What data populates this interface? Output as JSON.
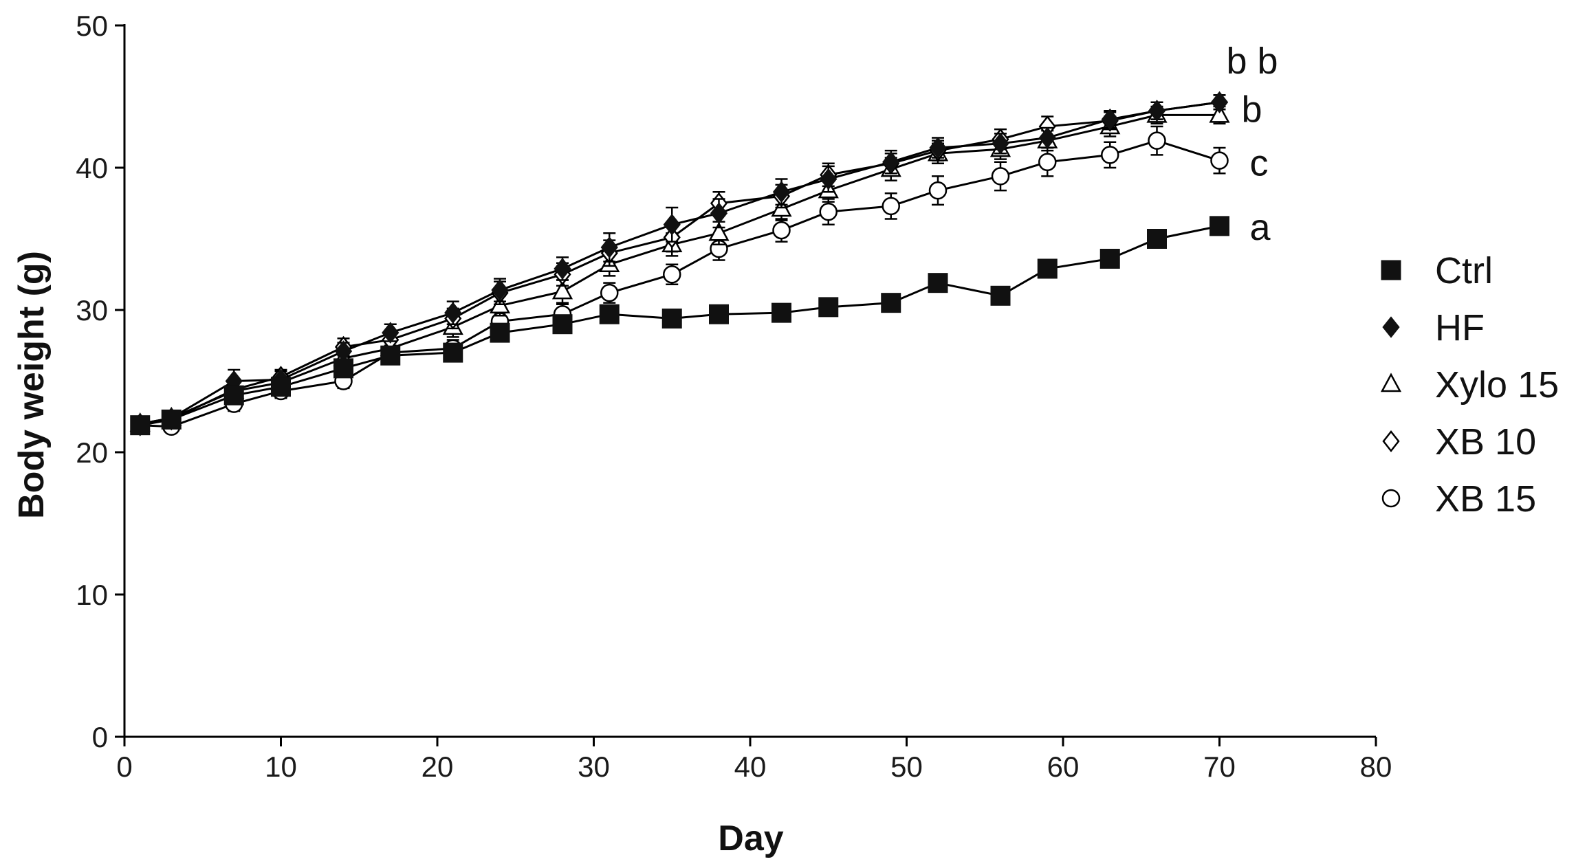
{
  "chart_data": {
    "type": "line",
    "title": "",
    "xlabel": "Day",
    "ylabel": "Body weight (g)",
    "xlim": [
      0,
      80
    ],
    "ylim": [
      0,
      50
    ],
    "xticks": [
      0,
      10,
      20,
      30,
      40,
      50,
      60,
      70,
      80
    ],
    "yticks": [
      0,
      10,
      20,
      30,
      40,
      50
    ],
    "grid": false,
    "legend_position": "right",
    "series": [
      {
        "name": "Ctrl",
        "marker": "square-filled",
        "x": [
          1,
          3,
          7,
          10,
          14,
          17,
          21,
          24,
          28,
          31,
          35,
          38,
          42,
          45,
          49,
          52,
          56,
          59,
          63,
          66,
          70
        ],
        "values": [
          21.9,
          22.3,
          24.0,
          24.6,
          25.9,
          26.8,
          27.0,
          28.4,
          29.0,
          29.7,
          29.4,
          29.7,
          29.8,
          30.2,
          30.5,
          31.9,
          31.0,
          32.9,
          33.6,
          35.0,
          35.9
        ],
        "err": [
          0.3,
          0.3,
          0.5,
          0.4,
          0.5,
          0.4,
          0.4,
          0.5,
          0.5,
          0.6,
          0.3,
          0.4,
          0.4,
          0.4,
          0.4,
          0.5,
          0.5,
          0.6,
          0.5,
          0.6,
          0.5
        ]
      },
      {
        "name": "HF",
        "marker": "diamond-filled",
        "x": [
          1,
          3,
          7,
          10,
          14,
          17,
          21,
          24,
          28,
          31,
          35,
          38,
          42,
          45,
          49,
          52,
          56,
          59,
          63,
          66,
          70
        ],
        "values": [
          22.0,
          22.4,
          25.0,
          25.1,
          27.1,
          28.4,
          29.8,
          31.4,
          32.9,
          34.4,
          36.0,
          36.8,
          38.3,
          39.2,
          40.4,
          41.4,
          41.7,
          42.1,
          43.4,
          44.0,
          44.6
        ],
        "err": [
          0.3,
          0.4,
          0.8,
          0.6,
          0.6,
          0.6,
          0.8,
          0.8,
          0.8,
          1.0,
          1.2,
          1.0,
          0.9,
          0.9,
          0.8,
          0.7,
          0.7,
          0.7,
          0.6,
          0.6,
          0.5
        ]
      },
      {
        "name": "Xylo 15",
        "marker": "triangle-open",
        "x": [
          1,
          3,
          7,
          10,
          14,
          17,
          21,
          24,
          28,
          31,
          35,
          38,
          42,
          45,
          49,
          52,
          56,
          59,
          63,
          66,
          70
        ],
        "values": [
          22.0,
          22.4,
          24.3,
          24.9,
          26.6,
          27.3,
          28.8,
          30.3,
          31.3,
          33.2,
          34.6,
          35.4,
          37.1,
          38.4,
          39.9,
          41.0,
          41.3,
          41.9,
          42.9,
          43.7,
          43.7
        ],
        "err": [
          0.3,
          0.3,
          0.6,
          0.5,
          0.6,
          0.5,
          0.7,
          0.7,
          0.8,
          0.8,
          0.8,
          0.8,
          0.8,
          0.8,
          0.8,
          0.7,
          0.7,
          0.7,
          0.7,
          0.6,
          0.6
        ]
      },
      {
        "name": "XB 10",
        "marker": "diamond-open",
        "x": [
          1,
          3,
          7,
          10,
          14,
          17,
          21,
          24,
          28,
          31,
          35,
          38,
          42,
          45,
          49,
          52,
          56,
          59,
          63,
          66,
          70
        ],
        "values": [
          21.9,
          22.3,
          24.4,
          25.3,
          27.4,
          27.9,
          29.4,
          31.2,
          32.5,
          34.0,
          35.1,
          37.5,
          38.0,
          39.5,
          40.3,
          41.2,
          42.0,
          42.9,
          43.3,
          44.0,
          44.6
        ],
        "err": [
          0.3,
          0.3,
          0.6,
          0.5,
          0.6,
          0.6,
          0.7,
          0.8,
          0.8,
          0.9,
          1.0,
          0.8,
          0.8,
          0.8,
          0.7,
          0.7,
          0.7,
          0.7,
          0.6,
          0.6,
          0.5
        ]
      },
      {
        "name": "XB 15",
        "marker": "circle-open",
        "x": [
          1,
          3,
          7,
          10,
          14,
          17,
          21,
          24,
          28,
          31,
          35,
          38,
          42,
          45,
          49,
          52,
          56,
          59,
          63,
          66,
          70
        ],
        "values": [
          21.9,
          21.8,
          23.4,
          24.3,
          25.0,
          27.0,
          27.3,
          29.2,
          29.7,
          31.2,
          32.5,
          34.3,
          35.6,
          36.9,
          37.3,
          38.4,
          39.4,
          40.4,
          40.9,
          41.9,
          40.5
        ],
        "err": [
          0.3,
          0.3,
          0.5,
          0.5,
          0.5,
          0.5,
          0.6,
          0.6,
          0.7,
          0.7,
          0.7,
          0.8,
          0.8,
          0.9,
          0.9,
          1.0,
          1.0,
          1.0,
          0.9,
          1.0,
          0.9
        ]
      }
    ],
    "annotations": [
      {
        "text": "b b",
        "series": [
          "XB 10",
          "HF"
        ]
      },
      {
        "text": "b",
        "series": [
          "Xylo 15"
        ]
      },
      {
        "text": "c",
        "series": [
          "XB 15"
        ]
      },
      {
        "text": "a",
        "series": [
          "Ctrl"
        ]
      }
    ]
  }
}
